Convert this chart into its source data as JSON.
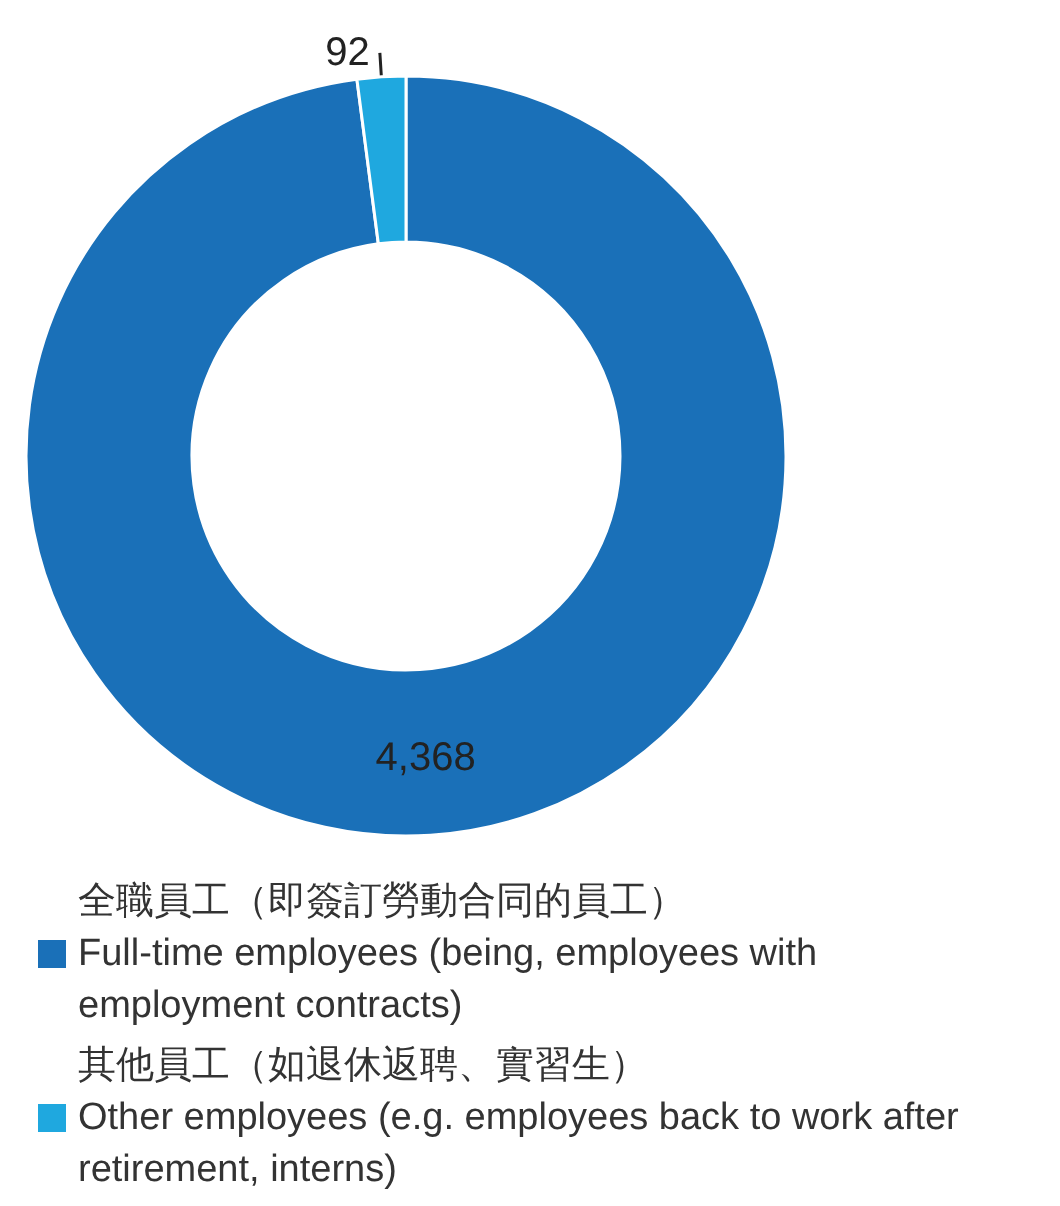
{
  "chart_data": {
    "type": "donut",
    "categories": [
      "全職員工（即簽訂勞動合同的員工）\nFull-time employees (being, employees with employment contracts)",
      "其他員工（如退休返聘、實習生）\nOther employees (e.g. employees back to work after retirement, interns)"
    ],
    "values": [
      4368,
      92
    ],
    "colors": [
      "#1a70b8",
      "#1fa8df"
    ],
    "value_labels": [
      "4,368",
      "92"
    ],
    "legend": "bottom"
  }
}
